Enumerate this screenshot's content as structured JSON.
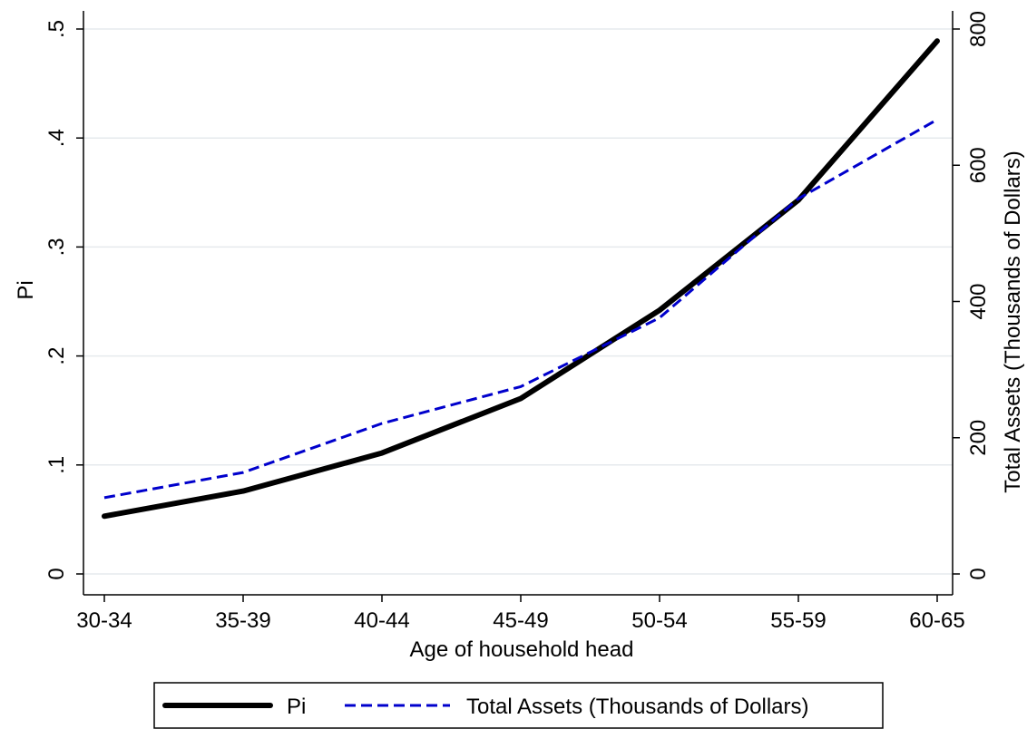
{
  "chart_data": {
    "type": "line",
    "title": "",
    "categories": [
      "30-34",
      "35-39",
      "40-44",
      "45-49",
      "50-54",
      "55-59",
      "60-65"
    ],
    "xlabel": "Age of household head",
    "ylabel": "Pi",
    "y2label": "Total Assets (Thousands of Dollars)",
    "ylim": [
      0,
      0.5
    ],
    "y2lim": [
      0,
      800
    ],
    "yticks": [
      0,
      0.1,
      0.2,
      0.3,
      0.4,
      0.5
    ],
    "ytick_labels": [
      "0",
      ".1",
      ".2",
      ".3",
      ".4",
      ".5"
    ],
    "y2ticks": [
      0,
      200,
      400,
      600,
      800
    ],
    "y2tick_labels": [
      "0",
      "200",
      "400",
      "600",
      "800"
    ],
    "grid": true,
    "legend_position": "bottom",
    "series": [
      {
        "name": "Pi",
        "axis": "left",
        "color": "#000000",
        "style": "solid",
        "values": [
          0.053,
          0.076,
          0.111,
          0.161,
          0.242,
          0.343,
          0.489
        ]
      },
      {
        "name": "Total Assets (Thousands of Dollars)",
        "axis": "right",
        "color": "#0000cc",
        "style": "dashed",
        "values": [
          112,
          149,
          221,
          275,
          376,
          551,
          667
        ]
      }
    ]
  }
}
